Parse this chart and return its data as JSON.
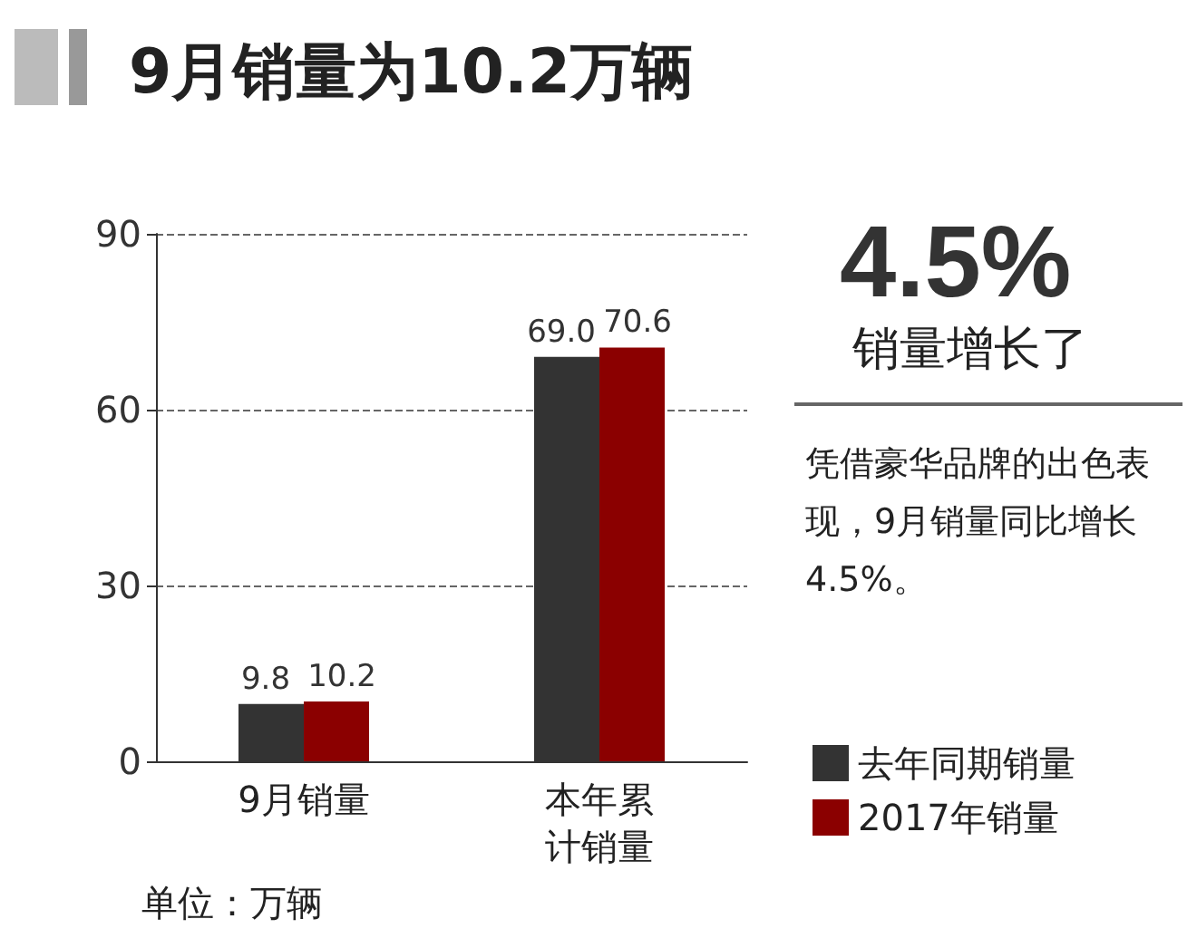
{
  "chart_data": {
    "type": "bar",
    "title": "9月销量为10.2万辆",
    "categories": [
      "9月销量",
      "本年累计销量"
    ],
    "series": [
      {
        "name": "去年同期销量",
        "color": "#333333",
        "values": [
          9.8,
          69.0
        ],
        "value_labels": [
          "9.8",
          "69.0"
        ]
      },
      {
        "name": "2017年销量",
        "color": "#8b0000",
        "values": [
          10.2,
          70.6
        ],
        "value_labels": [
          "10.2",
          "70.6"
        ]
      }
    ],
    "ylim": [
      0,
      90
    ],
    "yticks": [
      0,
      30,
      60,
      90
    ],
    "grid": "y",
    "legend": "bottom right",
    "annotations": [
      "4.5%",
      "销量增长了",
      "凭借豪华品牌的出色表现，9月销量同比增长4.5%。",
      "单位：万辆"
    ]
  }
}
